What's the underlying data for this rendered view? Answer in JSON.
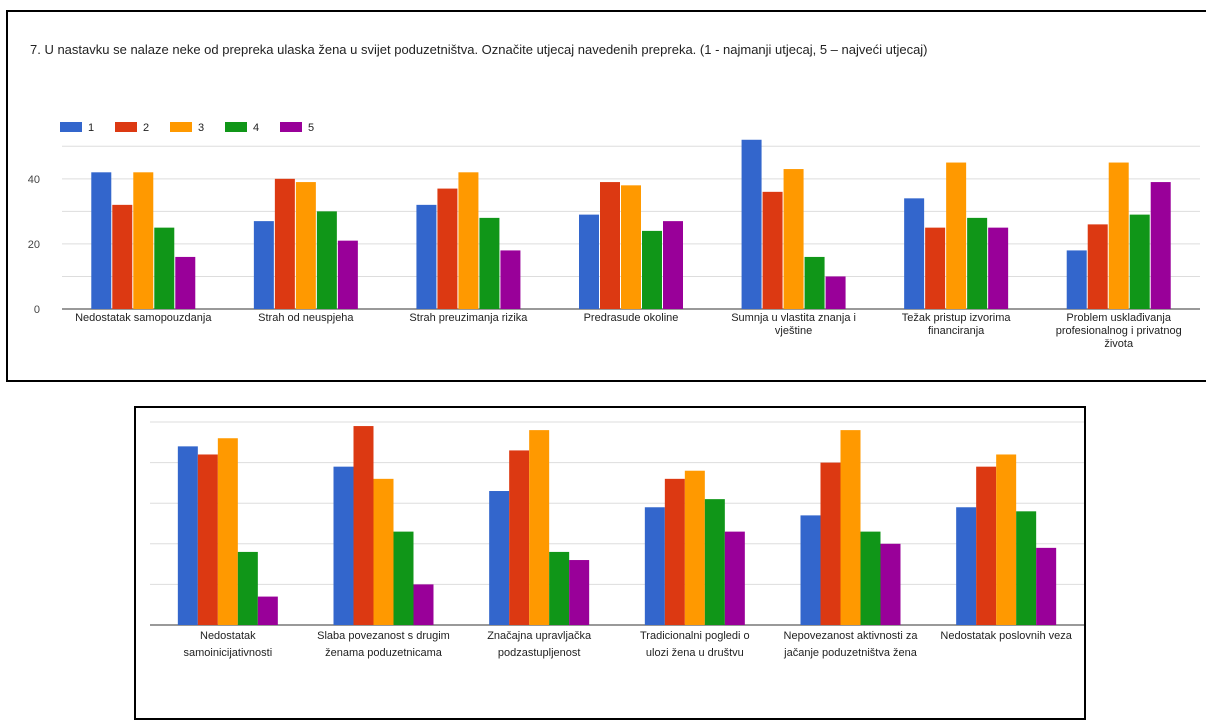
{
  "chart_data": [
    {
      "type": "bar",
      "title": "7. U nastavku se nalaze neke od prepreka ulaska žena u svijet poduzetništva. Označite utjecaj navedenih prepreka. (1 - najmanji utjecaj, 5 – najveći utjecaj)",
      "categories": [
        "Nedostatak samopouzdanja",
        "Strah od neuspjeha",
        "Strah preuzimanja rizika",
        "Predrasude okoline",
        "Sumnja u vlastita znanja i vještine",
        "Težak pristup izvorima financiranja",
        "Problem usklađivanja profesionalnog i privatnog života"
      ],
      "series": [
        {
          "name": "1",
          "values": [
            42,
            27,
            32,
            29,
            52,
            34,
            18
          ]
        },
        {
          "name": "2",
          "values": [
            32,
            40,
            37,
            39,
            36,
            25,
            26
          ]
        },
        {
          "name": "3",
          "values": [
            42,
            39,
            42,
            38,
            43,
            45,
            45
          ]
        },
        {
          "name": "4",
          "values": [
            25,
            30,
            28,
            24,
            16,
            28,
            29
          ]
        },
        {
          "name": "5",
          "values": [
            16,
            21,
            18,
            27,
            10,
            25,
            39
          ]
        }
      ],
      "colors": [
        "#3366cc",
        "#dc3912",
        "#ff9900",
        "#109618",
        "#990099"
      ],
      "yticks": [
        0,
        20,
        40
      ],
      "ylim": [
        0,
        55
      ],
      "legend": "top-left",
      "grid": true
    },
    {
      "type": "bar",
      "categories": [
        "Nedostatak samoinicijativnosti",
        "Slaba povezanost s drugim ženama poduzetnicama",
        "Značajna upravljačka podzastupljenost",
        "Tradicionalni pogledi o ulozi žena u društvu",
        "Nepovezanost aktivnosti za jačanje poduzetništva žena",
        "Nedostatak poslovnih veza"
      ],
      "series": [
        {
          "values": [
            44,
            39,
            33,
            29,
            27,
            29
          ]
        },
        {
          "values": [
            42,
            49,
            43,
            36,
            40,
            39
          ]
        },
        {
          "values": [
            46,
            36,
            48,
            38,
            48,
            42
          ]
        },
        {
          "values": [
            18,
            23,
            18,
            31,
            23,
            28
          ]
        },
        {
          "values": [
            7,
            10,
            16,
            23,
            20,
            19
          ]
        }
      ],
      "colors": [
        "#3366cc",
        "#dc3912",
        "#ff9900",
        "#109618",
        "#990099"
      ],
      "ylim": [
        0,
        50
      ],
      "legend": "none",
      "grid": true
    }
  ]
}
